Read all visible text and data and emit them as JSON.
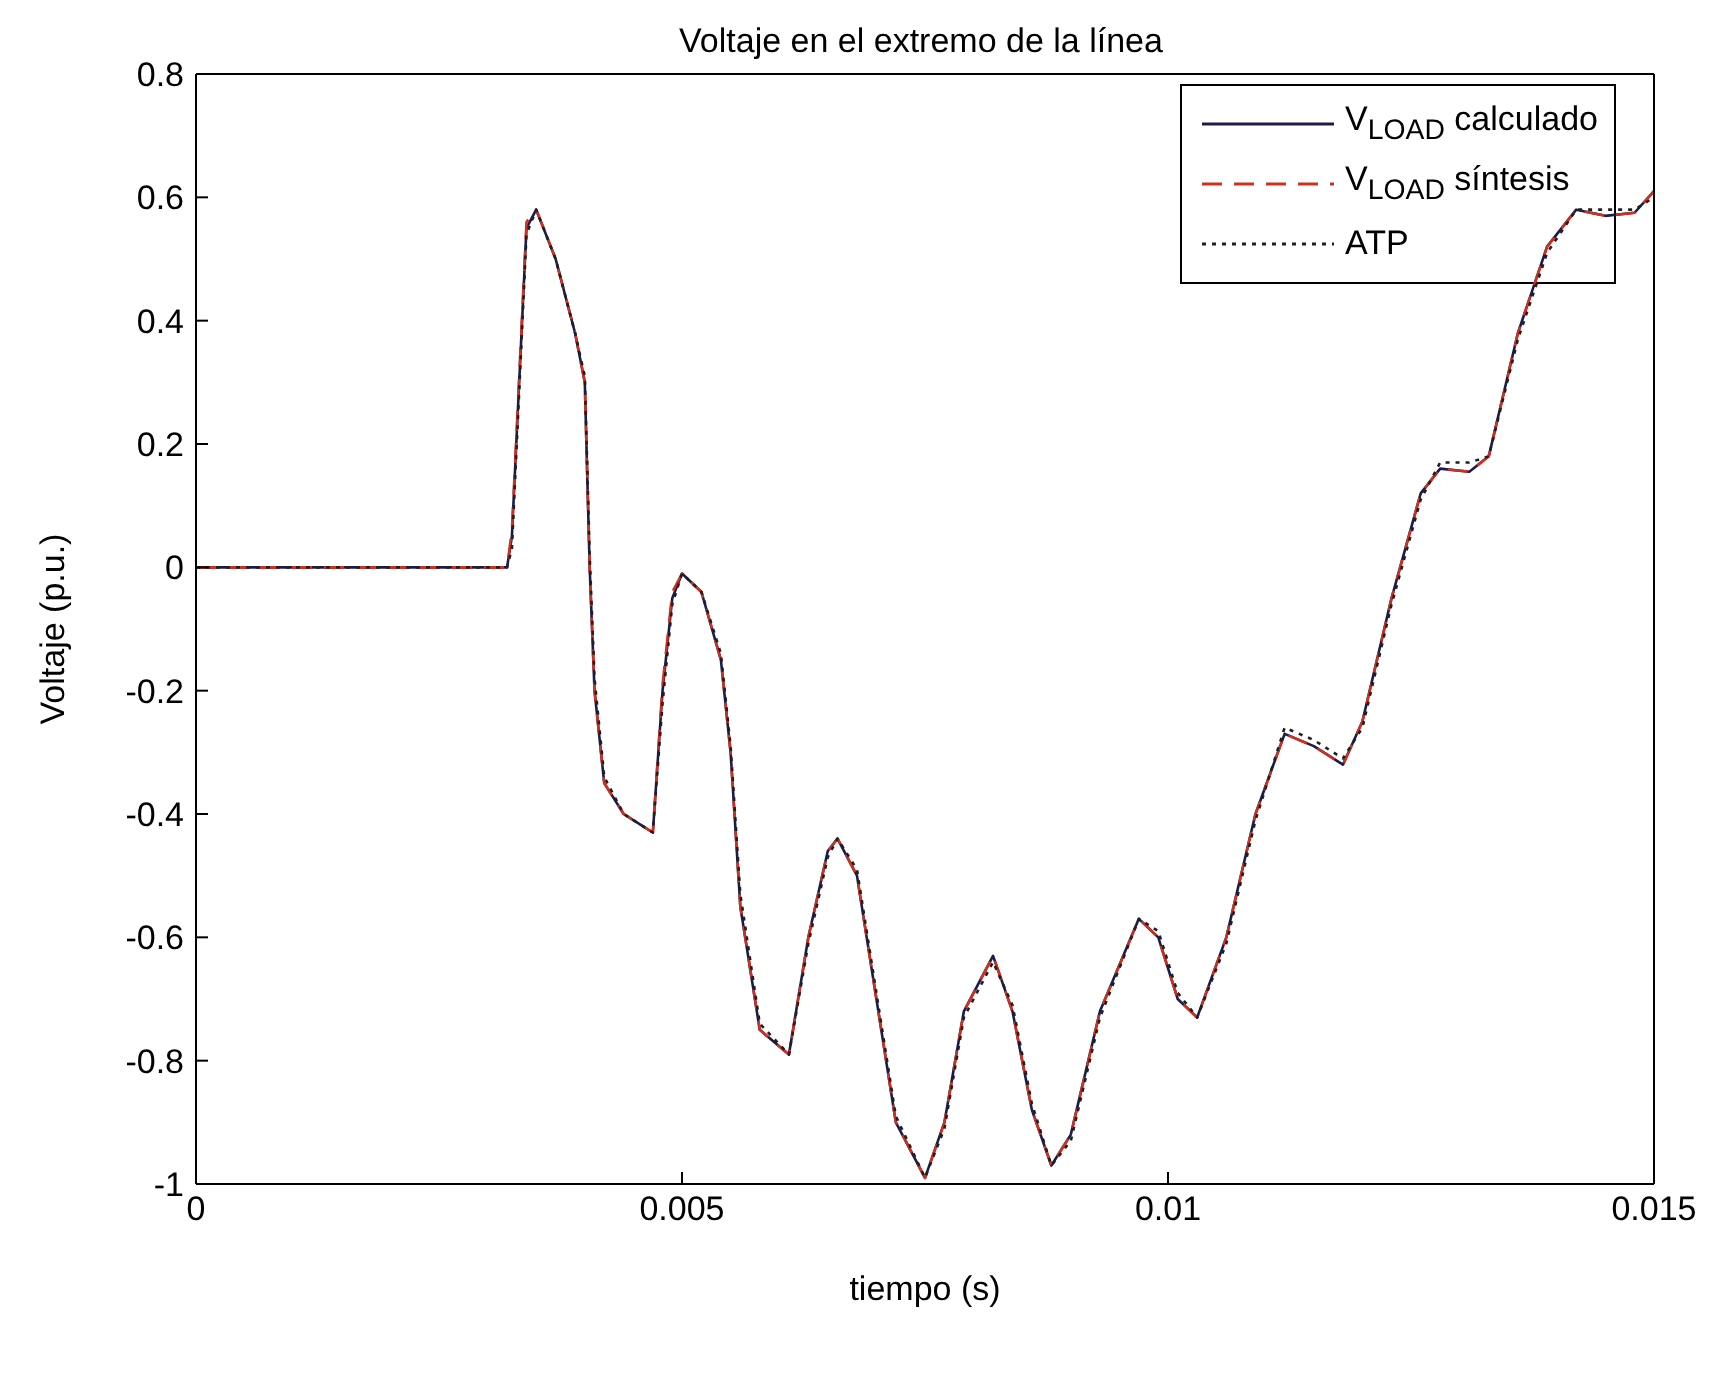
{
  "chart_data": {
    "type": "line",
    "title": "Voltaje en el extremo de la línea",
    "xlabel": "tiempo (s)",
    "ylabel": "Voltaje (p.u.)",
    "x": [
      0,
      0.0032,
      0.00325,
      0.0034,
      0.0035,
      0.0037,
      0.0039,
      0.004,
      0.00405,
      0.0041,
      0.0042,
      0.0044,
      0.0046,
      0.0047,
      0.0048,
      0.0049,
      0.005,
      0.0052,
      0.0054,
      0.0055,
      0.0056,
      0.0058,
      0.0061,
      0.0063,
      0.0065,
      0.0066,
      0.0068,
      0.007,
      0.0072,
      0.0075,
      0.0077,
      0.0079,
      0.0082,
      0.0084,
      0.0086,
      0.0088,
      0.009,
      0.0093,
      0.0097,
      0.0099,
      0.0101,
      0.0103,
      0.0106,
      0.0109,
      0.0112,
      0.0115,
      0.0118,
      0.012,
      0.0123,
      0.0126,
      0.0128,
      0.0131,
      0.0133,
      0.0136,
      0.0139,
      0.0142,
      0.0145,
      0.0148,
      0.015
    ],
    "series": [
      {
        "name": "V$_{LOAD}$ calculado",
        "color": "#1c1c4c",
        "line_style": "solid",
        "values": [
          0,
          0,
          0.05,
          0.55,
          0.58,
          0.5,
          0.38,
          0.3,
          0,
          -0.2,
          -0.35,
          -0.4,
          -0.42,
          -0.43,
          -0.2,
          -0.05,
          -0.01,
          -0.04,
          -0.15,
          -0.3,
          -0.55,
          -0.75,
          -0.79,
          -0.6,
          -0.46,
          -0.44,
          -0.5,
          -0.7,
          -0.9,
          -0.99,
          -0.9,
          -0.72,
          -0.63,
          -0.72,
          -0.88,
          -0.97,
          -0.92,
          -0.72,
          -0.57,
          -0.6,
          -0.7,
          -0.73,
          -0.6,
          -0.4,
          -0.27,
          -0.29,
          -0.32,
          -0.25,
          -0.05,
          0.12,
          0.16,
          0.155,
          0.18,
          0.38,
          0.52,
          0.58,
          0.57,
          0.575,
          0.61
        ]
      },
      {
        "name": "V$_{LOAD}$ síntesis",
        "color": "#d03020",
        "line_style": "dashed",
        "values": [
          0,
          0,
          0.06,
          0.56,
          0.58,
          0.5,
          0.38,
          0.3,
          0,
          -0.2,
          -0.35,
          -0.4,
          -0.42,
          -0.43,
          -0.19,
          -0.04,
          -0.01,
          -0.04,
          -0.15,
          -0.3,
          -0.55,
          -0.75,
          -0.79,
          -0.6,
          -0.46,
          -0.44,
          -0.5,
          -0.7,
          -0.9,
          -0.99,
          -0.9,
          -0.72,
          -0.63,
          -0.72,
          -0.88,
          -0.97,
          -0.92,
          -0.72,
          -0.57,
          -0.6,
          -0.7,
          -0.73,
          -0.6,
          -0.4,
          -0.27,
          -0.29,
          -0.32,
          -0.25,
          -0.05,
          0.12,
          0.16,
          0.155,
          0.18,
          0.38,
          0.52,
          0.58,
          0.57,
          0.575,
          0.61
        ]
      },
      {
        "name": "ATP",
        "color": "#202020",
        "line_style": "dotted",
        "values": [
          0,
          0,
          0.03,
          0.54,
          0.58,
          0.5,
          0.38,
          0.31,
          0.02,
          -0.18,
          -0.34,
          -0.4,
          -0.42,
          -0.43,
          -0.22,
          -0.06,
          -0.01,
          -0.04,
          -0.14,
          -0.29,
          -0.53,
          -0.74,
          -0.79,
          -0.61,
          -0.47,
          -0.44,
          -0.49,
          -0.69,
          -0.89,
          -0.99,
          -0.91,
          -0.73,
          -0.64,
          -0.71,
          -0.87,
          -0.97,
          -0.93,
          -0.73,
          -0.57,
          -0.59,
          -0.69,
          -0.73,
          -0.61,
          -0.41,
          -0.26,
          -0.28,
          -0.31,
          -0.26,
          -0.06,
          0.11,
          0.17,
          0.17,
          0.18,
          0.37,
          0.51,
          0.58,
          0.58,
          0.58,
          0.6
        ]
      }
    ],
    "xlim": [
      0,
      0.015
    ],
    "xticks": [
      0,
      0.005,
      0.01,
      0.015
    ],
    "ylim": [
      -1,
      0.8
    ],
    "yticks": [
      -1,
      -0.8,
      -0.6,
      -0.4,
      -0.2,
      0,
      0.2,
      0.4,
      0.6,
      0.8
    ],
    "grid": false,
    "legend": "top right"
  }
}
